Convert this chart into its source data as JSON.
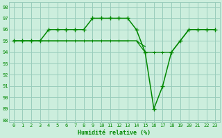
{
  "xlabel": "Humidité relative (%)",
  "bg_color": "#cceedd",
  "grid_color": "#99ccbb",
  "line_color": "#008800",
  "ylim": [
    87.8,
    98.4
  ],
  "xlim": [
    -0.5,
    23.5
  ],
  "yticks": [
    88,
    89,
    90,
    91,
    92,
    93,
    94,
    95,
    96,
    97,
    98
  ],
  "xticks": [
    0,
    1,
    2,
    3,
    4,
    5,
    6,
    7,
    8,
    9,
    10,
    11,
    12,
    13,
    14,
    15,
    16,
    17,
    18,
    19,
    20,
    21,
    22,
    23
  ],
  "line1": {
    "x": [
      0,
      1,
      2,
      3,
      4,
      5,
      6,
      7,
      8,
      9,
      10,
      11,
      12,
      13,
      14,
      15,
      16,
      17,
      18,
      19,
      20,
      21,
      22,
      23
    ],
    "y": [
      95,
      95,
      95,
      95,
      96,
      96,
      96,
      96,
      96,
      97,
      97,
      97,
      97,
      97,
      96,
      94,
      89,
      91,
      94,
      95,
      96,
      96,
      96,
      96
    ]
  },
  "line2": {
    "x": [
      0,
      1,
      2,
      3,
      4,
      5,
      6,
      7,
      8,
      9,
      10,
      11,
      12,
      13,
      14,
      15,
      16,
      17,
      18,
      19,
      20,
      21,
      22,
      23
    ],
    "y": [
      95,
      95,
      95,
      95,
      95,
      95,
      95,
      95,
      95,
      95,
      95,
      95,
      95,
      95,
      95,
      94,
      94,
      94,
      94,
      95,
      96,
      96,
      96,
      96
    ]
  },
  "line3": {
    "x": [
      0,
      1,
      2,
      3,
      4,
      5,
      6,
      7,
      8,
      9,
      10,
      11,
      12,
      13,
      14,
      15
    ],
    "y": [
      95,
      95,
      95,
      95,
      95,
      95,
      95,
      95,
      95,
      95,
      95,
      95,
      95,
      95,
      95,
      94.5
    ]
  },
  "line4": {
    "x": [
      0,
      1,
      2,
      3,
      4,
      5,
      6,
      7,
      8,
      9,
      10,
      11,
      12,
      13
    ],
    "y": [
      95,
      95,
      95,
      95,
      95,
      95,
      95,
      95,
      95,
      95,
      95,
      95,
      95,
      95
    ]
  }
}
